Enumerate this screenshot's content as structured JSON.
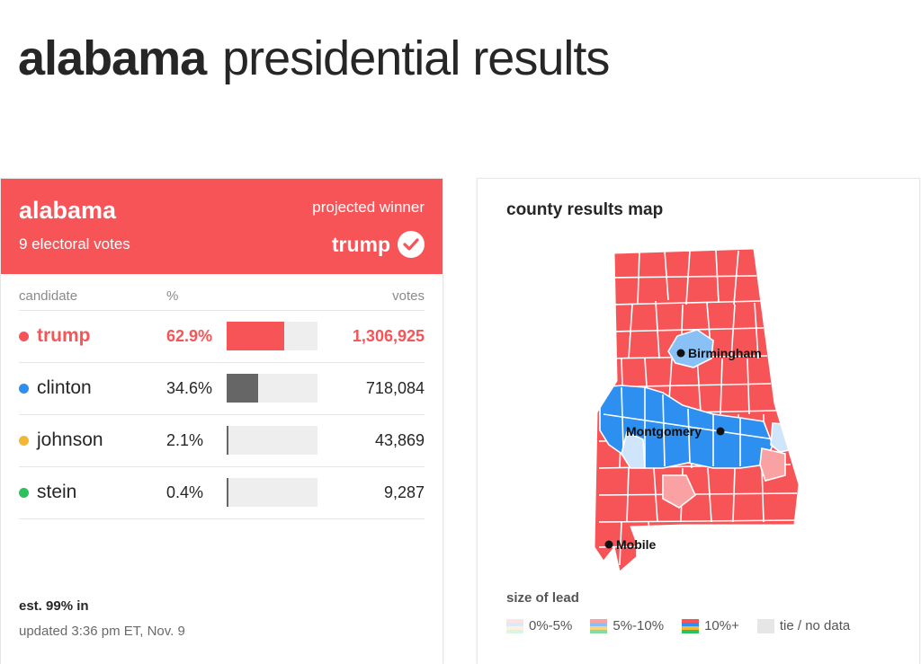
{
  "page": {
    "title_state": "alabama",
    "title_rest": "presidential results"
  },
  "results": {
    "state": "alabama",
    "electoral_votes": "9 electoral votes",
    "projected_label": "projected winner",
    "winner": "trump",
    "columns": {
      "candidate": "candidate",
      "pct": "%",
      "votes": "votes"
    },
    "candidates": [
      {
        "name": "trump",
        "pct": "62.9%",
        "pct_value": 62.9,
        "votes": "1,306,925",
        "dot_color": "#f75458",
        "bar_color": "#f75458",
        "winner": true
      },
      {
        "name": "clinton",
        "pct": "34.6%",
        "pct_value": 34.6,
        "votes": "718,084",
        "dot_color": "#2d8ff0",
        "bar_color": "#666666",
        "winner": false
      },
      {
        "name": "johnson",
        "pct": "2.1%",
        "pct_value": 2.1,
        "votes": "43,869",
        "dot_color": "#f4b732",
        "bar_color": "#666666",
        "winner": false
      },
      {
        "name": "stein",
        "pct": "0.4%",
        "pct_value": 0.4,
        "votes": "9,287",
        "dot_color": "#2ec05a",
        "bar_color": "#666666",
        "winner": false
      }
    ],
    "est_in": "est. 99% in",
    "updated": "updated 3:36 pm ET, Nov. 9"
  },
  "map": {
    "title": "county results map",
    "cities": {
      "birmingham": "Birmingham",
      "montgomery": "Montgomery",
      "mobile": "Mobile"
    },
    "colors": {
      "rep_strong": "#f75458",
      "rep_mid": "#f9a1a3",
      "dem_strong": "#2d8ff0",
      "dem_mid": "#89c0f5",
      "dem_light": "#cfe5fb",
      "border": "#ffffff"
    },
    "legend_title": "size of lead",
    "legend": [
      {
        "label": "0%-5%",
        "colors": [
          "#fde3e4",
          "#dbeafb",
          "#fdf3da",
          "#dcf4e2"
        ]
      },
      {
        "label": "5%-10%",
        "colors": [
          "#f9a1a3",
          "#89c0f5",
          "#f7d57e",
          "#86dca0"
        ]
      },
      {
        "label": "10%+",
        "colors": [
          "#f75458",
          "#2d8ff0",
          "#f4b732",
          "#2ec05a"
        ]
      },
      {
        "label": "tie / no data",
        "colors": [
          "#e6e6e6"
        ]
      }
    ]
  }
}
